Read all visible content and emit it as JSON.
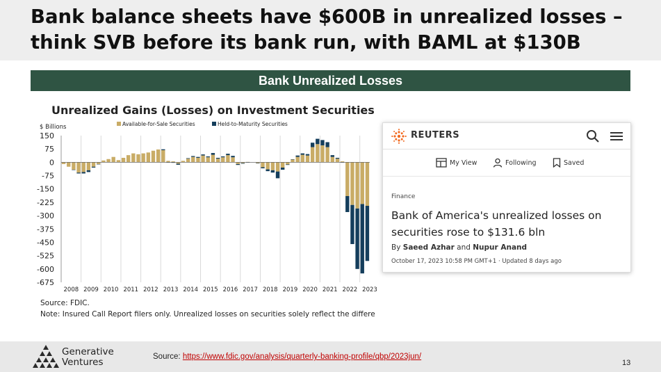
{
  "slide": {
    "title_line1": "Bank balance sheets have $600B in unrealized losses –",
    "title_line2": "think SVB before its bank run, with BAML at $130B",
    "banner": "Bank Unrealized Losses",
    "page_number": "13"
  },
  "chart_data": {
    "type": "bar",
    "stacked": true,
    "title": "Unrealized Gains (Losses) on Investment Securities",
    "ylabel": "$ Billions",
    "ylim": [
      -675,
      150
    ],
    "yticks": [
      150,
      75,
      0,
      -75,
      -150,
      -225,
      -300,
      -375,
      -450,
      -525,
      -600,
      -675
    ],
    "xtick_labels": [
      "2008",
      "2009",
      "2010",
      "2011",
      "2012",
      "2013",
      "2014",
      "2015",
      "2016",
      "2017",
      "2018",
      "2019",
      "2020",
      "2021",
      "2022",
      "2023"
    ],
    "grid": "vertical",
    "legend_position": "top",
    "colors": {
      "afs": "#c9ac66",
      "htm": "#153e5c"
    },
    "categories": [
      "2008Q1",
      "2008Q2",
      "2008Q3",
      "2008Q4",
      "2009Q1",
      "2009Q2",
      "2009Q3",
      "2009Q4",
      "2010Q1",
      "2010Q2",
      "2010Q3",
      "2010Q4",
      "2011Q1",
      "2011Q2",
      "2011Q3",
      "2011Q4",
      "2012Q1",
      "2012Q2",
      "2012Q3",
      "2012Q4",
      "2013Q1",
      "2013Q2",
      "2013Q3",
      "2013Q4",
      "2014Q1",
      "2014Q2",
      "2014Q3",
      "2014Q4",
      "2015Q1",
      "2015Q2",
      "2015Q3",
      "2015Q4",
      "2016Q1",
      "2016Q2",
      "2016Q3",
      "2016Q4",
      "2017Q1",
      "2017Q2",
      "2017Q3",
      "2017Q4",
      "2018Q1",
      "2018Q2",
      "2018Q3",
      "2018Q4",
      "2019Q1",
      "2019Q2",
      "2019Q3",
      "2019Q4",
      "2020Q1",
      "2020Q2",
      "2020Q3",
      "2020Q4",
      "2021Q1",
      "2021Q2",
      "2021Q3",
      "2021Q4",
      "2022Q1",
      "2022Q2",
      "2022Q3",
      "2022Q4",
      "2023Q1",
      "2023Q2"
    ],
    "series": [
      {
        "name": "Available-for-Sale Securities",
        "values": [
          -10,
          -25,
          -42,
          -58,
          -55,
          -45,
          -25,
          -10,
          10,
          18,
          30,
          12,
          25,
          40,
          50,
          45,
          50,
          55,
          65,
          72,
          68,
          8,
          5,
          -8,
          8,
          20,
          30,
          25,
          38,
          28,
          42,
          20,
          28,
          40,
          28,
          -10,
          -5,
          2,
          0,
          -5,
          -28,
          -40,
          -45,
          -52,
          -30,
          -12,
          15,
          30,
          42,
          38,
          85,
          102,
          95,
          85,
          30,
          20,
          5,
          -190,
          -240,
          -260,
          -235,
          -245
        ]
      },
      {
        "name": "Held-to-Maturity Securities",
        "values": [
          0,
          0,
          -2,
          -5,
          -8,
          -10,
          -5,
          -2,
          0,
          0,
          0,
          0,
          0,
          0,
          0,
          0,
          0,
          0,
          0,
          0,
          5,
          -2,
          -3,
          -6,
          0,
          3,
          5,
          5,
          6,
          5,
          10,
          5,
          5,
          8,
          8,
          -5,
          -3,
          -1,
          0,
          -1,
          -6,
          -10,
          -13,
          -38,
          -12,
          -3,
          2,
          8,
          8,
          8,
          25,
          30,
          30,
          28,
          10,
          5,
          -2,
          -90,
          -220,
          -340,
          -390,
          -310
        ]
      }
    ]
  },
  "notes": {
    "source": "Source: FDIC.",
    "note": "Note: Insured Call Report filers only. Unrealized losses on securities solely reflect the differe"
  },
  "reuters": {
    "brand": "REUTERS",
    "nav_items": [
      "My View",
      "Following",
      "Saved"
    ],
    "section": "Finance",
    "headline": "Bank of America's unrealized losses on securities rose to $131.6 bln",
    "byline_prefix": "By",
    "author1": "Saeed Azhar",
    "byline_and": "and",
    "author2": "Nupur Anand",
    "dateline": "October 17, 2023 10:58 PM GMT+1 · Updated 8 days ago"
  },
  "footer": {
    "company_line1": "Generative",
    "company_line2": "Ventures",
    "source_label": "Source:",
    "source_url": "https://www.fdic.gov/analysis/quarterly-banking-profile/qbp/2023jun/"
  }
}
